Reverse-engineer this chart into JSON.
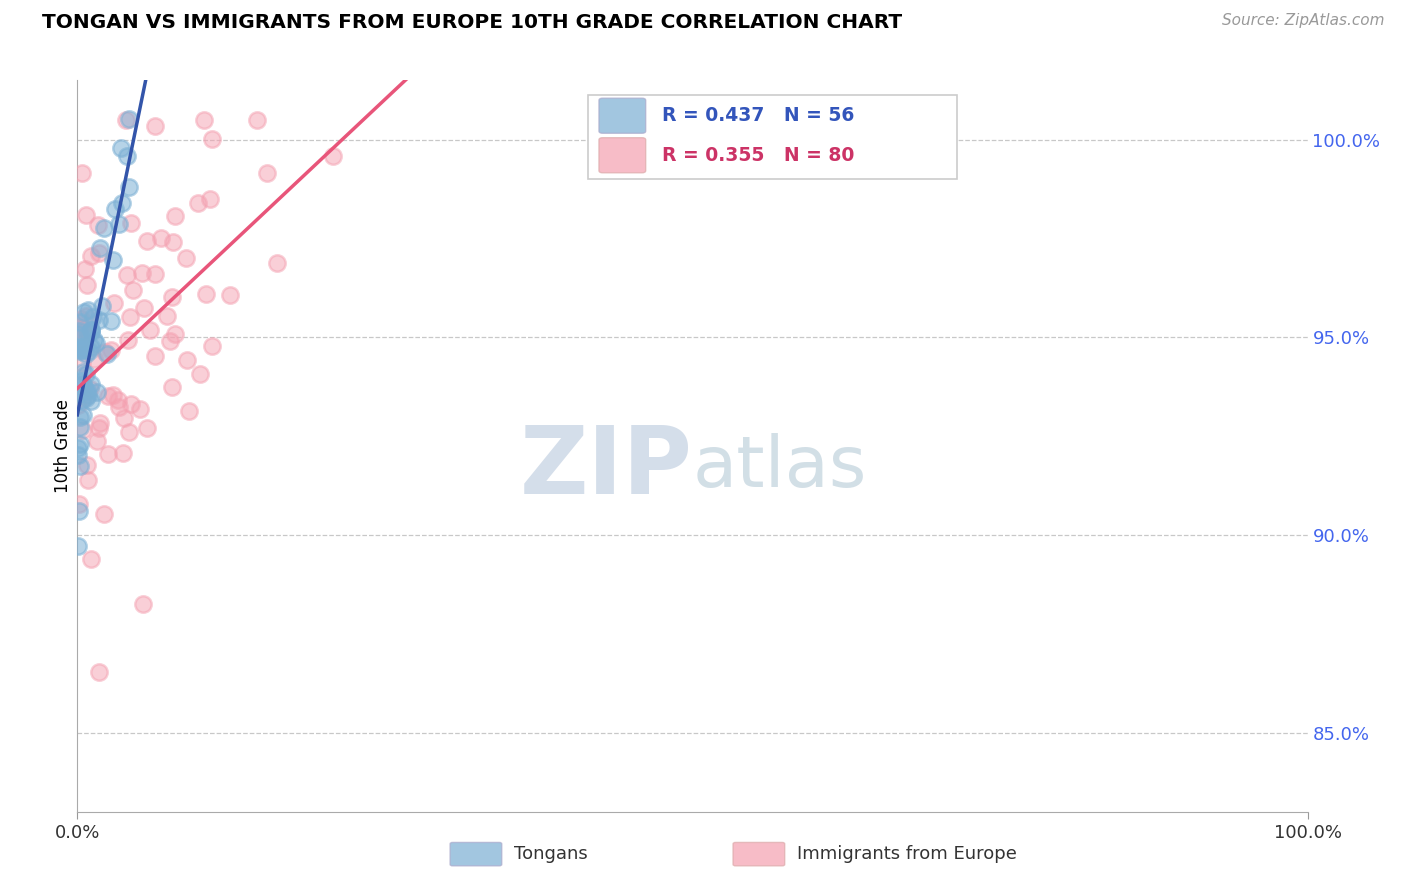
{
  "title": "TONGAN VS IMMIGRANTS FROM EUROPE 10TH GRADE CORRELATION CHART",
  "source_text": "Source: ZipAtlas.com",
  "ylabel": "10th Grade",
  "right_yticks": [
    85.0,
    90.0,
    95.0,
    100.0
  ],
  "watermark_ZIP": "ZIP",
  "watermark_atlas": "atlas",
  "legend_blue_r": "R = 0.437",
  "legend_blue_n": "N = 56",
  "legend_pink_r": "R = 0.355",
  "legend_pink_n": "N = 80",
  "legend_label_blue": "Tongans",
  "legend_label_pink": "Immigrants from Europe",
  "blue_color": "#7BAFD4",
  "pink_color": "#F4A0B0",
  "trendline_blue_color": "#3355AA",
  "trendline_pink_color": "#E8557A",
  "ylim_low": 83.0,
  "ylim_high": 101.5,
  "blue_intercept": 93.0,
  "blue_slope": 1.6,
  "pink_intercept": 94.0,
  "pink_slope": 0.2
}
